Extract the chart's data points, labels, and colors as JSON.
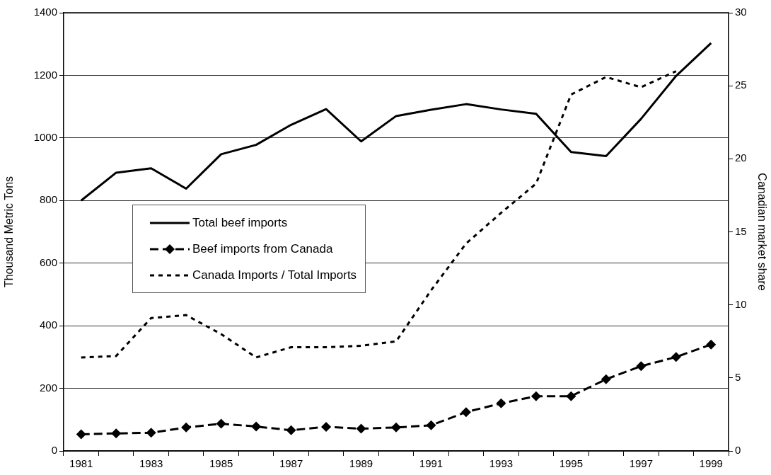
{
  "chart_data": {
    "type": "line",
    "ylabel": "Thousand Metric Tons",
    "y2label": "Canadian market share",
    "categories": [
      "1981",
      null,
      "1983",
      null,
      "1985",
      null,
      "1987",
      null,
      "1989",
      null,
      "1991",
      null,
      "1993",
      null,
      "1995",
      null,
      "1997",
      null,
      "1999"
    ],
    "series": [
      {
        "name": "Total beef imports",
        "color": "#000000",
        "line_style": "solid",
        "marker": "none",
        "values": [
          800,
          889,
          903,
          838,
          948,
          978,
          1042,
          1092,
          989,
          1070,
          1090,
          1108,
          1091,
          1077,
          955,
          942,
          1061,
          1198,
          1303
        ]
      },
      {
        "name": "Beef imports from Canada",
        "color": "#000000",
        "line_style": "dashed",
        "marker": "diamond",
        "values": [
          53,
          56,
          58,
          75,
          87,
          78,
          66,
          77,
          71,
          75,
          82,
          124,
          152,
          175,
          175,
          229,
          271,
          300,
          340
        ]
      },
      {
        "name": "Canada Imports / Total Imports",
        "color": "#000000",
        "line_style": "dotted",
        "marker": "none",
        "axis": "y2",
        "values": [
          6.4,
          6.5,
          9.1,
          9.3,
          8.0,
          6.4,
          7.1,
          7.1,
          7.2,
          7.5,
          11.0,
          14.2,
          16.3,
          18.3,
          24.4,
          25.6,
          24.9,
          26.0,
          null
        ]
      }
    ],
    "ylim": [
      0,
      1400
    ],
    "yticks": [
      0,
      200,
      400,
      600,
      800,
      1000,
      1200,
      1400
    ],
    "y2lim": [
      0,
      30
    ],
    "y2ticks": [
      0,
      5,
      10,
      15,
      20,
      25,
      30
    ],
    "grid": "y",
    "legend": "center left"
  }
}
